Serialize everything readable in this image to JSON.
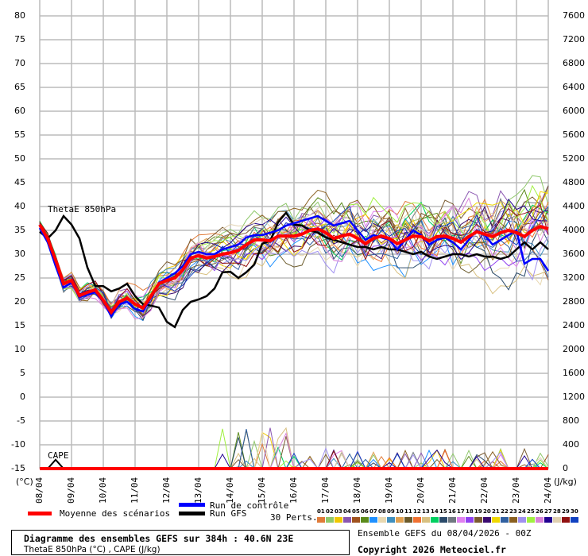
{
  "chart_data": {
    "type": "line",
    "title": "Diagramme des ensembles GEFS sur 384h : 40.6N 23E",
    "subtitle": "ThetaE 850hPa (°C) , CAPE (J/kg)",
    "run_info": "Ensemble GEFS du 08/04/2026 - 00Z",
    "copyright": "Copyright 2026 Meteociel.fr",
    "ylabel_left": "(°C)",
    "ylabel_right": "(J/kg)",
    "ylim_left": [
      -15,
      80
    ],
    "ylim_right": [
      0,
      7600
    ],
    "grid": true,
    "left_ticks": [
      "80",
      "75",
      "70",
      "65",
      "60",
      "55",
      "50",
      "45",
      "40",
      "35",
      "30",
      "25",
      "20",
      "15",
      "10",
      "5",
      "0",
      "-5",
      "-10",
      "-15"
    ],
    "right_ticks": [
      "7600",
      "7200",
      "6800",
      "6400",
      "6000",
      "5600",
      "5200",
      "4800",
      "4400",
      "4000",
      "3600",
      "3200",
      "2800",
      "2400",
      "2000",
      "1600",
      "1200",
      "800",
      "400",
      "0"
    ],
    "x_ticks": [
      "08/04",
      "09/04",
      "10/04",
      "11/04",
      "12/04",
      "13/04",
      "14/04",
      "15/04",
      "16/04",
      "17/04",
      "18/04",
      "19/04",
      "20/04",
      "21/04",
      "22/04",
      "23/04",
      "24/04"
    ],
    "step_hours": 6,
    "annotations": {
      "thetae": "ThetaE 850hPa",
      "cape": "CAPE"
    },
    "mean_thetae": [
      36.2,
      33.3,
      28.8,
      23.8,
      24.5,
      21.3,
      22,
      22.5,
      20.3,
      17.8,
      20,
      20.8,
      19.5,
      18.7,
      21.2,
      23.8,
      24.5,
      25,
      26.7,
      29.2,
      29.7,
      29.2,
      29.5,
      30,
      30.3,
      30.8,
      32,
      33,
      33,
      32.8,
      33.8,
      33.8,
      33.8,
      34.2,
      35,
      35.3,
      34.5,
      33.3,
      33.8,
      34.2,
      33.3,
      32.2,
      33.3,
      33.8,
      33.3,
      32.2,
      33,
      33.8,
      33.7,
      32.8,
      33.7,
      33.8,
      33.3,
      32.5,
      33.7,
      34.7,
      34.2,
      33.7,
      34.5,
      35,
      34.5,
      33.7,
      35,
      35.8,
      35.3
    ],
    "gfs_thetae": [
      34.7,
      33.3,
      35,
      38,
      36.2,
      33.3,
      27.2,
      23.3,
      23.3,
      22.2,
      22.8,
      23.8,
      21.2,
      19.5,
      19.2,
      18.8,
      15.8,
      14.7,
      18.3,
      20,
      20.5,
      21.2,
      22.8,
      26.2,
      26.3,
      25,
      26.2,
      27.8,
      32.2,
      32.8,
      36.7,
      38.7,
      36.2,
      36,
      35,
      34.5,
      33.5,
      33,
      32.5,
      32,
      31.5,
      31.5,
      31,
      31.5,
      31,
      31,
      30.5,
      30,
      30.5,
      29.5,
      29,
      29.5,
      30,
      30,
      29.5,
      30,
      29.5,
      29.5,
      29,
      29.5,
      31,
      32.5,
      31,
      32.5,
      31
    ],
    "control_thetae": [
      35.5,
      32.5,
      27.5,
      23,
      24,
      21,
      21.5,
      22,
      20,
      17,
      19.5,
      20,
      18.5,
      18,
      21,
      24,
      25,
      26,
      27.5,
      30,
      30.5,
      30,
      30,
      31,
      31.5,
      32,
      33.5,
      34,
      34,
      34.5,
      35,
      36,
      36.5,
      37,
      37.5,
      38,
      37,
      36,
      36.5,
      37,
      35,
      33,
      34,
      33.5,
      33,
      31,
      33,
      35,
      34,
      32,
      33,
      33.5,
      32.5,
      31,
      33,
      35,
      34,
      32,
      33,
      34,
      35,
      28,
      29,
      29,
      26.5
    ],
    "mean_cape": [
      0,
      0,
      0,
      0,
      0,
      0,
      0,
      0,
      0,
      0,
      0,
      0,
      0,
      0,
      0,
      0,
      0,
      0,
      0,
      0,
      0,
      0,
      0,
      0,
      0,
      0,
      0,
      0,
      0,
      0,
      0,
      0,
      0,
      0,
      0,
      0,
      0,
      0,
      0,
      0,
      0,
      0,
      0,
      0,
      0,
      0,
      0,
      0,
      0,
      0,
      0,
      0,
      0,
      0,
      0,
      0,
      0,
      0,
      0,
      0,
      0,
      0,
      0,
      0,
      0
    ],
    "gfs_cape": [
      0,
      0,
      150,
      0,
      0,
      0,
      0,
      0,
      0,
      0,
      0,
      0,
      0,
      0,
      0,
      0,
      0,
      0,
      0,
      0,
      0,
      0,
      0,
      0,
      0,
      0,
      0,
      0,
      0,
      0,
      0,
      0,
      0,
      0,
      0,
      0,
      0,
      0,
      0,
      0,
      0,
      0,
      0,
      0,
      0,
      0,
      0,
      0,
      0,
      0,
      0,
      0,
      0,
      0,
      0,
      0,
      0,
      0,
      0,
      0,
      0,
      0,
      0,
      0,
      0
    ],
    "perturbation_colors": [
      "#e07b39",
      "#8fc86b",
      "#f0c800",
      "#8a56b0",
      "#a0521e",
      "#5a8a1a",
      "#1e90ff",
      "#e8d8b0",
      "#3f8fbf",
      "#e0a050",
      "#6b5a2a",
      "#f07030",
      "#d8c080",
      "#00d060",
      "#2a4a6a",
      "#707880",
      "#e080f0",
      "#9040f0",
      "#7a5a30",
      "#3a0a70",
      "#f0d800",
      "#3060a0",
      "#8a6020",
      "#a090f0",
      "#a0f040",
      "#d880d8",
      "#200090",
      "#e0d0b0",
      "#901010",
      "#1040c0"
    ],
    "colors": {
      "mean": "#ff0000",
      "control": "#0000ff",
      "gfs": "#000000",
      "grid": "#bbbbbb"
    }
  },
  "legend": {
    "mean": "Moyenne des scénarios",
    "control": "Run de contrôle",
    "gfs": "Run GFS",
    "perts": "30 Perts.",
    "pert_numbers": [
      "01",
      "02",
      "03",
      "04",
      "05",
      "06",
      "07",
      "08",
      "09",
      "10",
      "11",
      "12",
      "13",
      "14",
      "15",
      "16",
      "17",
      "18",
      "19",
      "20",
      "21",
      "22",
      "23",
      "24",
      "25",
      "26",
      "27",
      "28",
      "29",
      "30"
    ]
  }
}
